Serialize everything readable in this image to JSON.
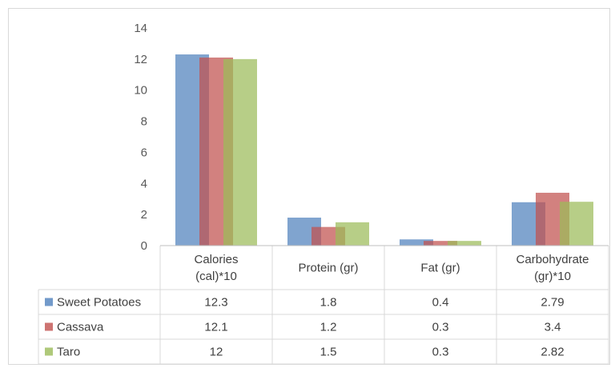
{
  "chart_data": {
    "type": "bar",
    "title": "",
    "xlabel": "",
    "ylabel": "",
    "ylim": [
      0,
      14
    ],
    "yticks": [
      0,
      2,
      4,
      6,
      8,
      10,
      12,
      14
    ],
    "grid": false,
    "legend": "data-table",
    "categories": [
      [
        "Calories",
        "(cal)*10"
      ],
      [
        "Protein (gr)"
      ],
      [
        "Fat (gr)"
      ],
      [
        "Carbohydrate",
        "(gr)*10"
      ]
    ],
    "series": [
      {
        "name": "Sweet Potatoes",
        "color": "#4f81bd",
        "values": [
          12.3,
          1.8,
          0.4,
          2.79
        ]
      },
      {
        "name": "Cassava",
        "color": "#c0504d",
        "values": [
          12.1,
          1.2,
          0.3,
          3.4
        ]
      },
      {
        "name": "Taro",
        "color": "#9bbb59",
        "values": [
          12,
          1.5,
          0.3,
          2.82
        ]
      }
    ]
  }
}
